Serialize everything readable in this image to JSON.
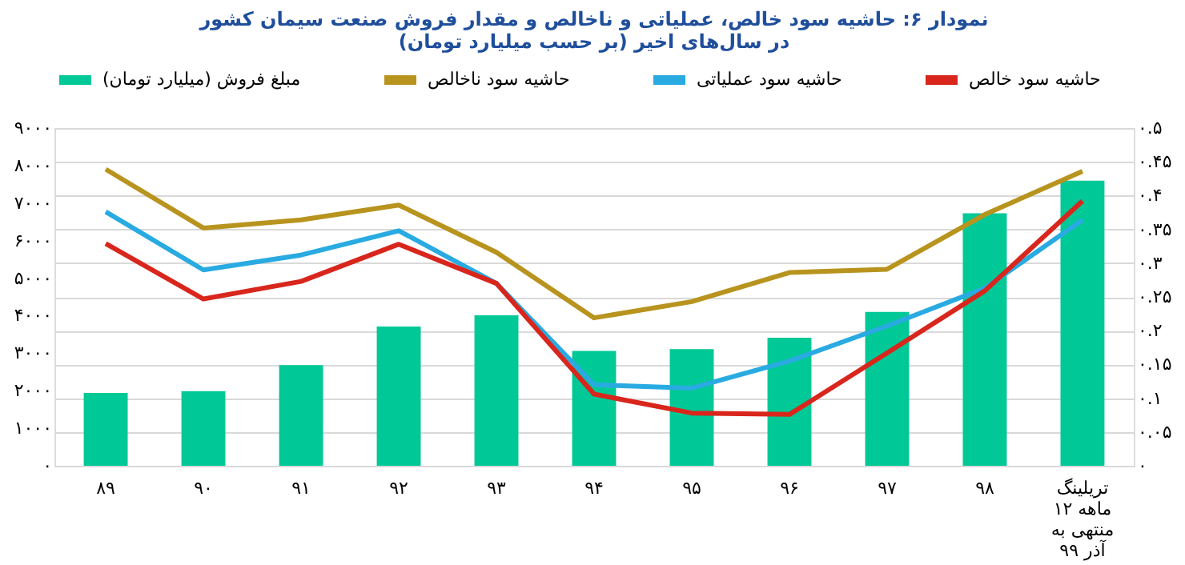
{
  "chart_data": {
    "type": "bar",
    "title": "نمودار ۶: حاشیه سود خالص، عملیاتی و ناخالص و مقدار فروش صنعت سیمان کشور در سال‌های اخیر (بر حسب میلیارد تومان)",
    "categories": [
      "۸۹",
      "۹۰",
      "۹۱",
      "۹۲",
      "۹۳",
      "۹۴",
      "۹۵",
      "۹۶",
      "۹۷",
      "۹۸",
      "تریلینگ\n۱۲ ماهه\nمنتهی به\nآذر ۹۹"
    ],
    "series": [
      {
        "name": "مبلغ فروش (میلیارد تومان)",
        "color": "#00c896",
        "values": [
          1940,
          1990,
          2680,
          3710,
          4010,
          3060,
          3110,
          3410,
          4100,
          6730,
          7600
        ]
      },
      {
        "name": "حاشیه سود ناخالص",
        "type": "line",
        "axis": "y2",
        "color": "#b8941f",
        "values": [
          0.439,
          0.352,
          0.364,
          0.386,
          0.316,
          0.219,
          0.243,
          0.286,
          0.291,
          0.372,
          0.436
        ]
      },
      {
        "name": "حاشیه سود عملیاتی",
        "type": "line",
        "axis": "y2",
        "color": "#29abe2",
        "values": [
          0.376,
          0.29,
          0.312,
          0.348,
          0.27,
          0.12,
          0.115,
          0.155,
          0.207,
          0.263,
          0.364
        ]
      },
      {
        "name": "حاشیه سود خالص",
        "type": "line",
        "axis": "y2",
        "color": "#d9261c",
        "values": [
          0.329,
          0.247,
          0.273,
          0.328,
          0.27,
          0.106,
          0.078,
          0.076,
          0.167,
          0.259,
          0.392
        ]
      }
    ],
    "ylim": [
      0,
      9000
    ],
    "yticks": [
      {
        "value": 0,
        "label": "۰"
      },
      {
        "value": 1000,
        "label": "۱۰۰۰"
      },
      {
        "value": 2000,
        "label": "۲۰۰۰"
      },
      {
        "value": 3000,
        "label": "۳۰۰۰"
      },
      {
        "value": 4000,
        "label": "۴۰۰۰"
      },
      {
        "value": 5000,
        "label": "۵۰۰۰"
      },
      {
        "value": 6000,
        "label": "۶۰۰۰"
      },
      {
        "value": 7000,
        "label": "۷۰۰۰"
      },
      {
        "value": 8000,
        "label": "۸۰۰۰"
      },
      {
        "value": 9000,
        "label": "۹۰۰۰"
      }
    ],
    "y2lim": [
      0,
      0.5
    ],
    "y2ticks": [
      {
        "value": 0,
        "label": "۰"
      },
      {
        "value": 0.05,
        "label": "۰.۰۵"
      },
      {
        "value": 0.1,
        "label": "۰.۱"
      },
      {
        "value": 0.15,
        "label": "۰.۱۵"
      },
      {
        "value": 0.2,
        "label": "۰.۲"
      },
      {
        "value": 0.25,
        "label": "۰.۲۵"
      },
      {
        "value": 0.3,
        "label": "۰.۳"
      },
      {
        "value": 0.35,
        "label": "۰.۳۵"
      },
      {
        "value": 0.4,
        "label": "۰.۴"
      },
      {
        "value": 0.45,
        "label": "۰.۴۵"
      },
      {
        "value": 0.5,
        "label": "۰.۵"
      }
    ],
    "grid": "y",
    "legend": "top",
    "marker": "none",
    "line_style": "solid"
  }
}
